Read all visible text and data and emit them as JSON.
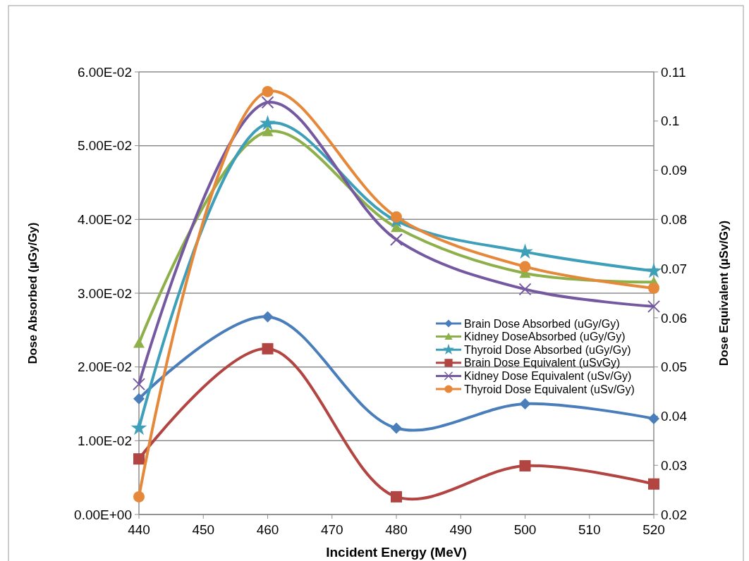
{
  "chart_data": {
    "type": "line",
    "xlabel": "Incident Energy (MeV)",
    "ylabel": "Dose Absorbed (µGy/Gy)",
    "y2label": "Dose Equivalent (µSv/Gy)",
    "x": [
      440,
      460,
      480,
      500,
      520
    ],
    "xlim": [
      440,
      520
    ],
    "xticks": [
      440,
      450,
      460,
      470,
      480,
      490,
      500,
      510,
      520
    ],
    "ylim": [
      0,
      0.06
    ],
    "yticks": [
      {
        "value": 0,
        "label": "0.00E+00"
      },
      {
        "value": 0.01,
        "label": "1.00E-02"
      },
      {
        "value": 0.02,
        "label": "2.00E-02"
      },
      {
        "value": 0.03,
        "label": "3.00E-02"
      },
      {
        "value": 0.04,
        "label": "4.00E-02"
      },
      {
        "value": 0.05,
        "label": "5.00E-02"
      },
      {
        "value": 0.06,
        "label": "6.00E-02"
      }
    ],
    "y2lim": [
      0.02,
      0.11
    ],
    "y2ticks": [
      0.02,
      0.03,
      0.04,
      0.05,
      0.06,
      0.07,
      0.08,
      0.09,
      0.1,
      0.11
    ],
    "grid": "y",
    "legend": "right",
    "series": [
      {
        "name": "Brain Dose Absorbed (uGy/Gy)",
        "color": "#4a7ebb",
        "marker": "diamond",
        "values": [
          0.0157,
          0.0268,
          0.0117,
          0.015,
          0.013
        ]
      },
      {
        "name": "Kidney DoseAbsorbed (uGy/Gy)",
        "color": "#8eb04a",
        "marker": "triangle",
        "values": [
          0.0232,
          0.0519,
          0.0389,
          0.0327,
          0.0315
        ]
      },
      {
        "name": "Thyroid Dose Absorbed (uGy/Gy)",
        "color": "#3e9fb8",
        "marker": "star",
        "values": [
          0.0117,
          0.053,
          0.0398,
          0.0356,
          0.033
        ]
      },
      {
        "name": "Brain Dose Equivalent (uSvGy)",
        "color": "#b24442",
        "marker": "square",
        "axis": "y2",
        "values": [
          0.0313,
          0.0537,
          0.0236,
          0.0299,
          0.0262
        ]
      },
      {
        "name": "Kidney Dose Equivalent (uSv/Gy)",
        "color": "#7559a0",
        "marker": "cross",
        "axis": "y2",
        "values": [
          0.0465,
          0.1038,
          0.0759,
          0.0658,
          0.0623
        ]
      },
      {
        "name": "Thyroid Dose Equivalent (uSv/Gy)",
        "color": "#e5883a",
        "marker": "circle",
        "axis": "y2",
        "values": [
          0.0236,
          0.106,
          0.0805,
          0.0704,
          0.066
        ]
      }
    ]
  }
}
